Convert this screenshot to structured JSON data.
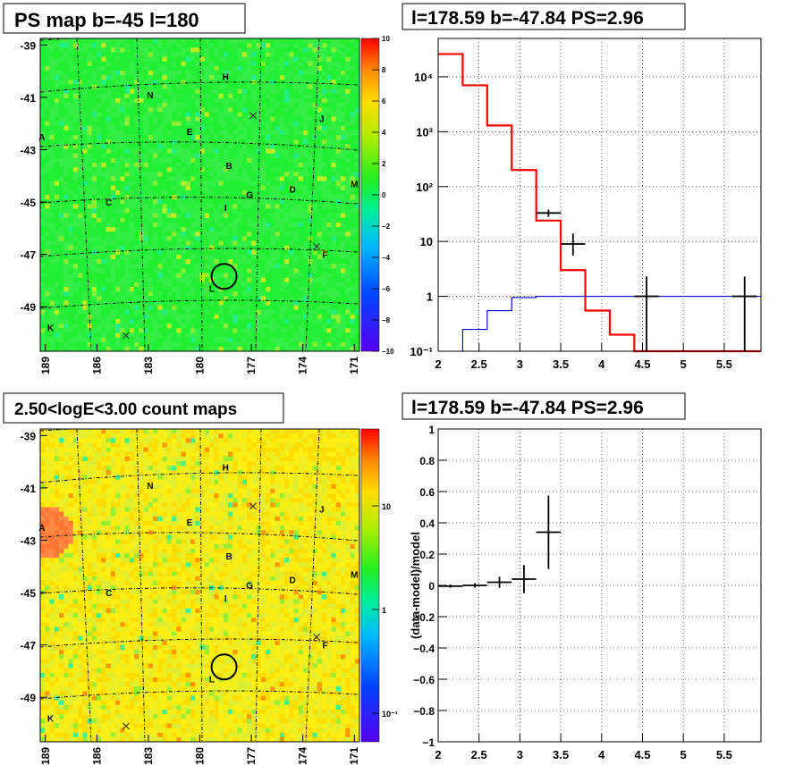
{
  "chart_data": [
    {
      "type": "heatmap",
      "title": "PS map b=-45 l=180",
      "xlabel": "",
      "ylabel": "",
      "x_ticks": [
        "189",
        "186",
        "183",
        "180",
        "177",
        "174",
        "171"
      ],
      "y_ticks": [
        "-39",
        "-41",
        "-43",
        "-45",
        "-47",
        "-49"
      ],
      "colorbar_ticks": [
        "10",
        "8",
        "6",
        "4",
        "2",
        "0",
        "−2",
        "−4",
        "−6",
        "−8",
        "−10"
      ],
      "zlim": [
        -10,
        10
      ],
      "markers": [
        {
          "label": "H",
          "l": 178.5,
          "b": -40.2
        },
        {
          "label": "N",
          "l": 182.9,
          "b": -40.9
        },
        {
          "label": "J",
          "l": 172.9,
          "b": -41.8
        },
        {
          "label": "A",
          "l": 189.2,
          "b": -42.5
        },
        {
          "label": "E",
          "l": 180.6,
          "b": -42.3
        },
        {
          "label": "B",
          "l": 178.3,
          "b": -43.6
        },
        {
          "label": "M",
          "l": 171.0,
          "b": -44.3
        },
        {
          "label": "D",
          "l": 174.6,
          "b": -44.5
        },
        {
          "label": "G",
          "l": 177.1,
          "b": -44.7
        },
        {
          "label": "C",
          "l": 185.3,
          "b": -45.0
        },
        {
          "label": "I",
          "l": 178.5,
          "b": -45.2
        },
        {
          "label": "F",
          "l": 172.7,
          "b": -47.0
        },
        {
          "label": "L",
          "l": 179.3,
          "b": -48.3
        },
        {
          "label": "K",
          "l": 188.7,
          "b": -49.8
        }
      ],
      "crosses": [
        {
          "l": 176.9,
          "b": -41.7
        },
        {
          "l": 173.2,
          "b": -46.7
        },
        {
          "l": 184.3,
          "b": -50.1
        }
      ],
      "circle": {
        "l": 178.59,
        "b": -47.84
      }
    },
    {
      "type": "line",
      "title": "l=178.59 b=-47.84 PS=2.96",
      "xlabel": "",
      "ylabel": "",
      "xlim": [
        2,
        5.95
      ],
      "ylim": [
        0.1,
        50000
      ],
      "log_y": true,
      "x_ticks": [
        "2",
        "2.5",
        "3",
        "3.5",
        "4",
        "4.5",
        "5",
        "5.5"
      ],
      "y_ticks": [
        "10⁻¹",
        "1",
        "10",
        "10²",
        "10³",
        "10⁴"
      ],
      "series": [
        {
          "color": "#ff0000",
          "style": "step",
          "edges": [
            2,
            2.3,
            2.6,
            2.9,
            3.2,
            3.5,
            3.8,
            4.1,
            4.4,
            5.95
          ],
          "values": [
            26000,
            7000,
            1300,
            200,
            24,
            3,
            0.55,
            0.2,
            0.1
          ]
        },
        {
          "color": "#0000cc",
          "style": "step",
          "edges": [
            2,
            2.3,
            2.6,
            2.9,
            3.2,
            5.95
          ],
          "values": [
            0.09,
            0.25,
            0.55,
            0.95,
            1.0
          ]
        },
        {
          "color": "#000000",
          "style": "errorbar",
          "points": [
            {
              "x": 3.35,
              "y": 33,
              "xerr": 0.15,
              "ylo": 28,
              "yhi": 38
            },
            {
              "x": 3.65,
              "y": 9,
              "xerr": 0.15,
              "ylo": 5.5,
              "yhi": 14
            },
            {
              "x": 4.55,
              "y": 1,
              "xerr": 0.15,
              "ylo": 0.1,
              "yhi": 2.3
            },
            {
              "x": 5.75,
              "y": 1,
              "xerr": 0.15,
              "ylo": 0.1,
              "yhi": 2.3
            }
          ]
        }
      ]
    },
    {
      "type": "heatmap",
      "title": "2.50<logE<3.00 count maps",
      "xlabel": "",
      "ylabel": "",
      "x_ticks": [
        "189",
        "186",
        "183",
        "180",
        "177",
        "174",
        "171"
      ],
      "y_ticks": [
        "-39",
        "-41",
        "-43",
        "-45",
        "-47",
        "-49"
      ],
      "colorbar_ticks": [
        "10",
        "1",
        "10⁻¹"
      ],
      "log_z": true
    },
    {
      "type": "scatter",
      "title": "l=178.59 b=-47.84 PS=2.96",
      "xlabel": "",
      "ylabel": "(data-model)/model",
      "xlim": [
        2,
        5.95
      ],
      "ylim": [
        -1,
        1
      ],
      "x_ticks": [
        "2",
        "2.5",
        "3",
        "3.5",
        "4",
        "4.5",
        "5",
        "5.5"
      ],
      "y_ticks": [
        "−1",
        "−0.8",
        "−0.6",
        "−0.4",
        "−0.2",
        "0",
        "0.2",
        "0.4",
        "0.6",
        "0.8",
        "1"
      ],
      "points": [
        {
          "x": 2.15,
          "y": -0.005,
          "xerr": 0.15,
          "yerr": 0.01
        },
        {
          "x": 2.45,
          "y": 0.0,
          "xerr": 0.15,
          "yerr": 0.015
        },
        {
          "x": 2.75,
          "y": 0.02,
          "xerr": 0.15,
          "yerr": 0.035
        },
        {
          "x": 3.05,
          "y": 0.04,
          "xerr": 0.15,
          "yerr": 0.09
        },
        {
          "x": 3.35,
          "y": 0.34,
          "xerr": 0.15,
          "yerr": 0.235
        }
      ]
    }
  ]
}
